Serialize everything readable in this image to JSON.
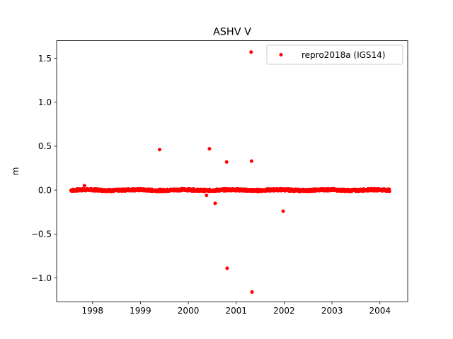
{
  "chart_data": {
    "type": "scatter",
    "title": "ASHV V",
    "xlabel": "",
    "ylabel": "m",
    "xlim": [
      1997.25,
      2004.58
    ],
    "ylim": [
      -1.27,
      1.7
    ],
    "xticks": [
      1998,
      1999,
      2000,
      2001,
      2002,
      2003,
      2004
    ],
    "yticks": [
      -1.0,
      -0.5,
      0.0,
      0.5,
      1.0,
      1.5
    ],
    "ytick_labels": [
      "−1.0",
      "−0.5",
      "0.0",
      "0.5",
      "1.0",
      "1.5"
    ],
    "grid": false,
    "legend_position": "top-right",
    "series": [
      {
        "name": "repro2018a (IGS14)",
        "color": "#ff0000",
        "dense_band": {
          "x_start": 1997.55,
          "x_end": 2004.2,
          "center": 0.0,
          "spread": 0.012
        },
        "points": [
          {
            "x": 1997.83,
            "y": 0.05
          },
          {
            "x": 1999.4,
            "y": 0.46
          },
          {
            "x": 2000.38,
            "y": -0.06
          },
          {
            "x": 2000.44,
            "y": 0.47
          },
          {
            "x": 2000.56,
            "y": -0.15
          },
          {
            "x": 2000.8,
            "y": 0.32
          },
          {
            "x": 2000.81,
            "y": -0.89
          },
          {
            "x": 2001.31,
            "y": 1.57
          },
          {
            "x": 2001.32,
            "y": 0.33
          },
          {
            "x": 2001.33,
            "y": -1.16
          },
          {
            "x": 2001.98,
            "y": -0.24
          }
        ]
      }
    ]
  }
}
